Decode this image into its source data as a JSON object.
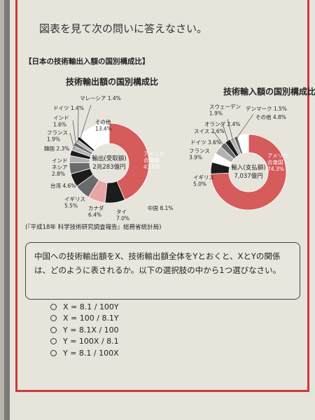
{
  "instruction": "図表を見て次の問いに答えなさい。",
  "section_title": "【日本の技術輸出入額の国別構成比】",
  "colors": {
    "accent": "#d65b5b",
    "black": "#1c1c1c",
    "gray": "#6a6a6a",
    "light_gray": "#b2b2b2",
    "pink": "#e8a5a5",
    "white": "#ffffff"
  },
  "chart_data": [
    {
      "type": "pie",
      "donut": true,
      "title": "技術輸出額の国別構成比",
      "center_label": [
        "輸出(受取額)",
        "2兆283億円"
      ],
      "slices": [
        {
          "label": "アメリカ合衆国",
          "value": 43.6,
          "text": [
            "アメリカ",
            "合衆国",
            "43.6%"
          ]
        },
        {
          "label": "中国",
          "value": 8.1,
          "text": [
            "中国 8.1%"
          ]
        },
        {
          "label": "タイ",
          "value": 7.0,
          "text": [
            "タイ",
            "7.0%"
          ]
        },
        {
          "label": "カナダ",
          "value": 6.4,
          "text": [
            "カナダ",
            "6.4%"
          ]
        },
        {
          "label": "イギリス",
          "value": 5.5,
          "text": [
            "イギリス",
            "5.5%"
          ]
        },
        {
          "label": "台湾",
          "value": 4.6,
          "text": [
            "台湾 4.6%"
          ]
        },
        {
          "label": "インドネシア",
          "value": 2.8,
          "text": [
            "インド",
            "ネシア",
            "2.8%"
          ]
        },
        {
          "label": "韓国",
          "value": 2.3,
          "text": [
            "韓国 2.3%"
          ]
        },
        {
          "label": "フランス",
          "value": 1.9,
          "text": [
            "フランス",
            "1.9%"
          ]
        },
        {
          "label": "インド",
          "value": 1.6,
          "text": [
            "インド",
            "1.6%"
          ]
        },
        {
          "label": "ドイツ",
          "value": 1.4,
          "text": [
            "ドイツ 1.4%"
          ]
        },
        {
          "label": "マレーシア",
          "value": 1.4,
          "text": [
            "マレーシア 1.4%"
          ]
        },
        {
          "label": "その他",
          "value": 13.4,
          "text": [
            "その他",
            "13.4%"
          ]
        }
      ]
    },
    {
      "type": "pie",
      "donut": true,
      "title": "技術輸入額の国別構成比",
      "center_label": [
        "輸入(支払額)",
        "7,037億円"
      ],
      "slices": [
        {
          "label": "アメリカ合衆国",
          "value": 74.3,
          "text": [
            "アメリカ",
            "合衆国",
            "74.3%"
          ]
        },
        {
          "label": "イギリス",
          "value": 5.0,
          "text": [
            "イギリス",
            "5.0%"
          ]
        },
        {
          "label": "フランス",
          "value": 3.9,
          "text": [
            "フランス",
            "3.9%"
          ]
        },
        {
          "label": "ドイツ",
          "value": 3.6,
          "text": [
            "ドイツ 3.6%"
          ]
        },
        {
          "label": "スイス",
          "value": 2.6,
          "text": [
            "スイス 2.6%"
          ]
        },
        {
          "label": "オランダ",
          "value": 2.4,
          "text": [
            "オランダ 2.4%"
          ]
        },
        {
          "label": "スウェーデン",
          "value": 1.9,
          "text": [
            "スウェーデン",
            "1.9%"
          ]
        },
        {
          "label": "デンマーク",
          "value": 1.5,
          "text": [
            "デンマーク 1.5%"
          ]
        },
        {
          "label": "その他",
          "value": 4.8,
          "text": [
            "その他 4.8%"
          ]
        }
      ]
    }
  ],
  "source": "(『平成18年 科学技術研究調査報告』総務省統計局)",
  "question": "中国への技術輸出額をX、技術輸出額全体をYとおくと、XとYの関係は、どのように表されるか。以下の選択肢の中から1つ選びなさい。",
  "options": [
    "X = 8.1 / 100Y",
    "X = 100 / 8.1Y",
    "Y = 8.1X / 100",
    "Y = 100X / 8.1",
    "Y = 8.1 / 100X"
  ]
}
